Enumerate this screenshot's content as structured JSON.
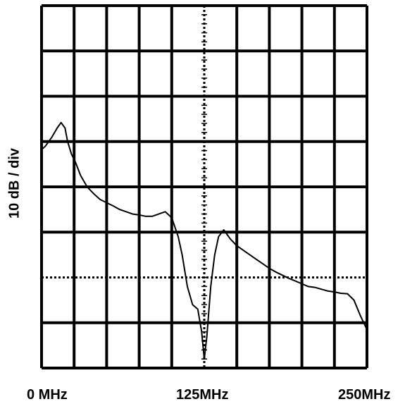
{
  "chart_data": {
    "type": "line",
    "ylabel": "10 dB / div",
    "xlabel": "",
    "title": "",
    "x_tick_labels": [
      "0 MHz",
      "125MHz",
      "250MHz"
    ],
    "xlim": [
      0,
      250
    ],
    "ylim": [
      0,
      8
    ],
    "x_divisions": 10,
    "y_divisions": 8,
    "grid": true,
    "series": [
      {
        "x": [
          0,
          3,
          8,
          12,
          15,
          18,
          20,
          23,
          26,
          30,
          35,
          40,
          45,
          50,
          55,
          60,
          65,
          70,
          75,
          80,
          85,
          90,
          95,
          100,
          105,
          108,
          112,
          116,
          120,
          123,
          125,
          127,
          130,
          133,
          136,
          140,
          145,
          150,
          155,
          160,
          165,
          170,
          175,
          180,
          185,
          190,
          195,
          200,
          205,
          210,
          215,
          220,
          225,
          230,
          235,
          240,
          245,
          250
        ],
        "y": [
          4.82,
          4.9,
          5.1,
          5.3,
          5.42,
          5.3,
          5.0,
          4.72,
          4.55,
          4.25,
          4.0,
          3.85,
          3.72,
          3.65,
          3.58,
          3.5,
          3.45,
          3.4,
          3.38,
          3.35,
          3.35,
          3.4,
          3.45,
          3.32,
          2.9,
          2.5,
          1.8,
          1.4,
          1.3,
          0.8,
          0.2,
          0.7,
          1.8,
          2.5,
          2.9,
          3.05,
          2.85,
          2.7,
          2.6,
          2.5,
          2.4,
          2.3,
          2.2,
          2.12,
          2.05,
          1.98,
          1.92,
          1.86,
          1.8,
          1.78,
          1.74,
          1.7,
          1.68,
          1.65,
          1.64,
          1.5,
          1.15,
          0.85
        ]
      }
    ]
  }
}
